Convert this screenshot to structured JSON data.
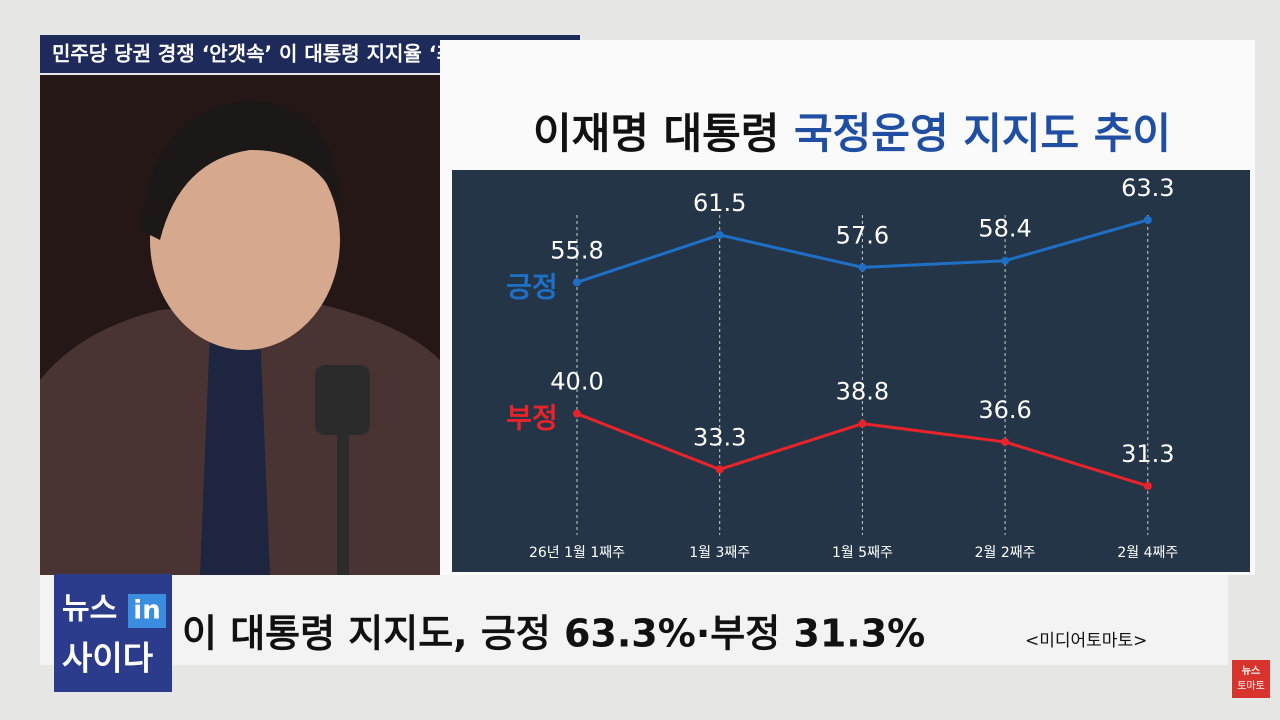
{
  "banner": "민주당 당권 경쟁 ‘안갯속’ 이 대통령 지지율 ‘최고치’",
  "chart_data": {
    "type": "line",
    "title": [
      "이재명 대통령",
      "국정운영 지지도 추이"
    ],
    "categories": [
      "26년 1월 1째주",
      "1월 3째주",
      "1월 5째주",
      "2월 2째주",
      "2월 4째주"
    ],
    "series": [
      {
        "name": "긍정",
        "color": "#1f6fc5",
        "values": [
          55.8,
          61.5,
          57.6,
          58.4,
          63.3
        ],
        "value_labels": [
          "55.8",
          "61.5",
          "57.6",
          "58.4",
          "63.3"
        ]
      },
      {
        "name": "부정",
        "color": "#e8242a",
        "values": [
          40.0,
          33.3,
          38.8,
          36.6,
          31.3
        ],
        "value_labels": [
          "40.0",
          "33.3",
          "38.8",
          "36.6",
          "31.3"
        ]
      }
    ]
  },
  "logo": {
    "line1": "뉴스",
    "badge": "in",
    "line2": "사이다"
  },
  "caption": "이 대통령 지지도, 긍정 63.3%·부정 31.3%",
  "source": "<미디어토마토>",
  "corner_logo": {
    "line1": "뉴스",
    "line2": "토마토"
  }
}
